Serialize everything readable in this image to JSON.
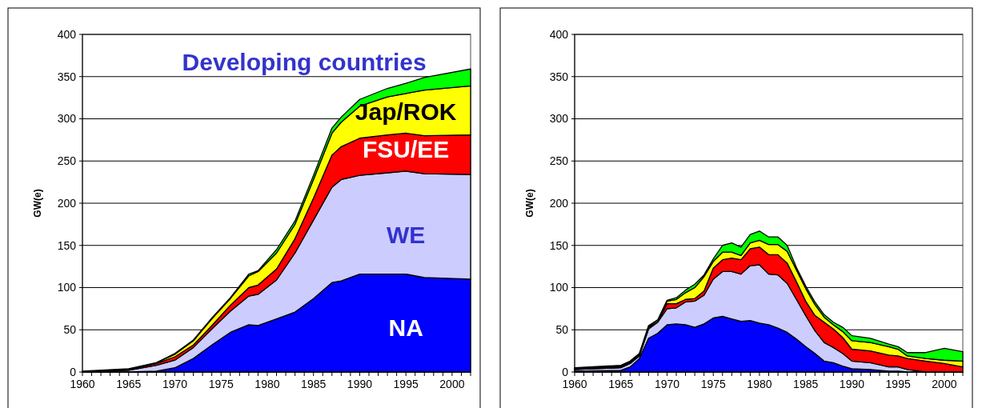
{
  "chart_data": [
    {
      "type": "area",
      "stacked": true,
      "ylabel": "GW(e)",
      "xlim": [
        1960,
        2002
      ],
      "ylim": [
        0,
        400
      ],
      "yticks": [
        0,
        50,
        100,
        150,
        200,
        250,
        300,
        350,
        400
      ],
      "grid": "y",
      "legend": false,
      "xticks": [
        1960,
        {
          "value": 1961,
          "label": null
        },
        {
          "value": 1962,
          "label": null
        },
        {
          "value": 1963,
          "label": null
        },
        {
          "value": 1964,
          "label": null
        },
        1965,
        {
          "value": 1966,
          "label": null
        },
        {
          "value": 1967,
          "label": null
        },
        {
          "value": 1968,
          "label": null
        },
        {
          "value": 1969,
          "label": null
        },
        1970,
        {
          "value": 1971,
          "label": null
        },
        {
          "value": 1972,
          "label": null
        },
        {
          "value": 1973,
          "label": null
        },
        {
          "value": 1974,
          "label": null
        },
        1975,
        {
          "value": 1976,
          "label": null
        },
        {
          "value": 1977,
          "label": null
        },
        {
          "value": 1978,
          "label": null
        },
        {
          "value": 1979,
          "label": null
        },
        1980,
        {
          "value": 1981,
          "label": null
        },
        {
          "value": 1982,
          "label": null
        },
        {
          "value": 1983,
          "label": null
        },
        {
          "value": 1984,
          "label": null
        },
        1985,
        {
          "value": 1986,
          "label": null
        },
        {
          "value": 1987,
          "label": null
        },
        {
          "value": 1988,
          "label": null
        },
        {
          "value": 1989,
          "label": null
        },
        1990,
        {
          "value": 1991,
          "label": null
        },
        {
          "value": 1992,
          "label": null
        },
        {
          "value": 1993,
          "label": null
        },
        {
          "value": 1994,
          "label": null
        },
        1995,
        {
          "value": 1996,
          "label": null
        },
        {
          "value": 1997,
          "label": null
        },
        {
          "value": 1998,
          "label": null
        },
        {
          "value": 1999,
          "label": null
        },
        2000,
        {
          "value": 2001,
          "label": null
        },
        {
          "value": 2002,
          "label": null
        }
      ],
      "x": [
        1960,
        1965,
        1968,
        1970,
        1972,
        1974,
        1976,
        1978,
        1979,
        1981,
        1983,
        1985,
        1987,
        1988,
        1990,
        1993,
        1995,
        1997,
        2002
      ],
      "series": [
        {
          "name": "NA",
          "color": "#0000ff",
          "values": [
            0,
            0,
            1,
            5,
            16,
            32,
            47,
            56,
            55,
            63,
            71,
            87,
            106,
            108,
            116,
            116,
            116,
            112,
            110
          ]
        },
        {
          "name": "WE",
          "color": "#ccccff",
          "values": [
            0,
            2,
            7,
            9,
            13,
            19,
            25,
            34,
            37,
            46,
            70,
            93,
            113,
            120,
            117,
            120,
            122,
            123,
            124
          ]
        },
        {
          "name": "FSU/EE",
          "color": "#ff0000",
          "values": [
            0,
            1,
            2,
            4,
            3,
            4,
            7,
            10,
            11,
            13,
            17,
            26,
            38,
            39,
            44,
            45,
            45,
            45,
            47
          ]
        },
        {
          "name": "Jap/ROK",
          "color": "#ffff00",
          "values": [
            0,
            0,
            1,
            3,
            5,
            8,
            8,
            14,
            16,
            19,
            17,
            22,
            26,
            29,
            38,
            45,
            47,
            54,
            58
          ]
        },
        {
          "name": "Developing countries",
          "color": "#00ff00",
          "values": [
            1,
            1,
            0,
            1,
            1,
            1,
            1,
            2,
            1,
            4,
            4,
            5,
            6,
            6,
            8,
            10,
            12,
            15,
            20
          ]
        }
      ]
    },
    {
      "type": "area",
      "stacked": true,
      "ylabel": "GW(e)",
      "xlim": [
        1960,
        2002
      ],
      "ylim": [
        0,
        400
      ],
      "yticks": [
        0,
        50,
        100,
        150,
        200,
        250,
        300,
        350,
        400
      ],
      "grid": "y",
      "legend": false,
      "xticks": [
        1960,
        {
          "value": 1961,
          "label": null
        },
        {
          "value": 1962,
          "label": null
        },
        {
          "value": 1963,
          "label": null
        },
        {
          "value": 1964,
          "label": null
        },
        1965,
        {
          "value": 1966,
          "label": null
        },
        {
          "value": 1967,
          "label": null
        },
        {
          "value": 1968,
          "label": null
        },
        {
          "value": 1969,
          "label": null
        },
        1970,
        {
          "value": 1971,
          "label": null
        },
        {
          "value": 1972,
          "label": null
        },
        {
          "value": 1973,
          "label": null
        },
        {
          "value": 1974,
          "label": null
        },
        1975,
        {
          "value": 1976,
          "label": null
        },
        {
          "value": 1977,
          "label": null
        },
        {
          "value": 1978,
          "label": null
        },
        {
          "value": 1979,
          "label": null
        },
        1980,
        {
          "value": 1981,
          "label": null
        },
        {
          "value": 1982,
          "label": null
        },
        {
          "value": 1983,
          "label": null
        },
        {
          "value": 1984,
          "label": null
        },
        1985,
        {
          "value": 1986,
          "label": null
        },
        {
          "value": 1987,
          "label": null
        },
        {
          "value": 1988,
          "label": null
        },
        {
          "value": 1989,
          "label": null
        },
        1990,
        {
          "value": 1991,
          "label": null
        },
        {
          "value": 1992,
          "label": null
        },
        {
          "value": 1993,
          "label": null
        },
        {
          "value": 1994,
          "label": null
        },
        1995,
        {
          "value": 1996,
          "label": null
        },
        {
          "value": 1997,
          "label": null
        },
        {
          "value": 1998,
          "label": null
        },
        {
          "value": 1999,
          "label": null
        },
        2000,
        {
          "value": 2001,
          "label": null
        },
        {
          "value": 2002,
          "label": null
        }
      ],
      "x": [
        1960,
        1965,
        1966,
        1967,
        1968,
        1969,
        1970,
        1971,
        1972,
        1973,
        1974,
        1975,
        1976,
        1977,
        1978,
        1979,
        1980,
        1981,
        1982,
        1983,
        1984,
        1985,
        1986,
        1987,
        1988,
        1989,
        1990,
        1992,
        1994,
        1995,
        1996,
        1998,
        2000,
        2002
      ],
      "series": [
        {
          "color": "#0000ff",
          "values": [
            1,
            2,
            6,
            16,
            40,
            46,
            56,
            57,
            56,
            53,
            57,
            64,
            66,
            63,
            60,
            61,
            58,
            56,
            52,
            47,
            39,
            30,
            22,
            13,
            11,
            7,
            4,
            3,
            1,
            1,
            0,
            0,
            0,
            0
          ]
        },
        {
          "color": "#ccccff",
          "values": [
            2,
            3,
            4,
            3,
            11,
            13,
            19,
            19,
            27,
            31,
            34,
            46,
            53,
            56,
            56,
            65,
            69,
            60,
            63,
            58,
            47,
            37,
            27,
            22,
            18,
            15,
            9,
            8,
            5,
            5,
            3,
            0,
            0,
            0
          ]
        },
        {
          "color": "#ff0000",
          "values": [
            0,
            1,
            1,
            1,
            2,
            0,
            6,
            5,
            3,
            3,
            5,
            13,
            14,
            16,
            17,
            20,
            21,
            23,
            24,
            24,
            21,
            17,
            18,
            24,
            22,
            19,
            14,
            14,
            14,
            13,
            13,
            13,
            10,
            6
          ]
        },
        {
          "color": "#ffff00",
          "values": [
            1,
            1,
            1,
            1,
            1,
            2,
            3,
            5,
            8,
            13,
            17,
            8,
            9,
            7,
            5,
            7,
            8,
            12,
            12,
            14,
            14,
            15,
            13,
            6,
            5,
            7,
            10,
            10,
            10,
            8,
            3,
            3,
            4,
            7
          ]
        },
        {
          "color": "#00ff00",
          "values": [
            1,
            1,
            1,
            1,
            1,
            1,
            1,
            2,
            3,
            4,
            2,
            3,
            8,
            11,
            10,
            10,
            11,
            9,
            9,
            7,
            3,
            3,
            3,
            3,
            3,
            5,
            6,
            5,
            3,
            3,
            4,
            7,
            14,
            11
          ]
        }
      ]
    }
  ]
}
